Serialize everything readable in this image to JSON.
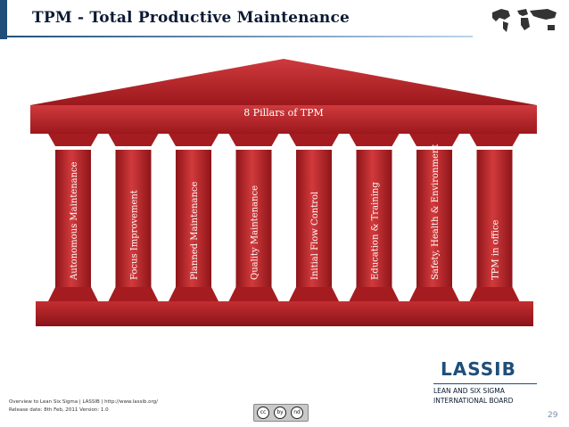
{
  "header": {
    "title": "TPM - Total Productive Maintenance"
  },
  "diagram": {
    "roof_label": "8 Pillars of TPM",
    "pillars": [
      "Autonomous Maintenance",
      "Focus Improvement",
      "Planned Maintenance",
      "Quality Maintenance",
      "Initial Flow Control",
      "Education & Training",
      "Safety, Health & Environment",
      "TPM in office"
    ],
    "colors": {
      "pillar": "#b31e23",
      "pillar_light": "#d84a4a",
      "pillar_dark": "#7e1015"
    }
  },
  "footer": {
    "line1": "Overview to Lean Six Sigma  |  LASSIB  |  http://www.lassib.org/",
    "line2": "Release date: 8th Feb, 2011      Version: 1.0",
    "cc_icons": [
      "cc",
      "by",
      "nd"
    ]
  },
  "logo": {
    "name": "LASSIB",
    "sub1": "LEAN AND SIX SIGMA",
    "sub2": "INTERNATIONAL BOARD"
  },
  "page_number": "29"
}
